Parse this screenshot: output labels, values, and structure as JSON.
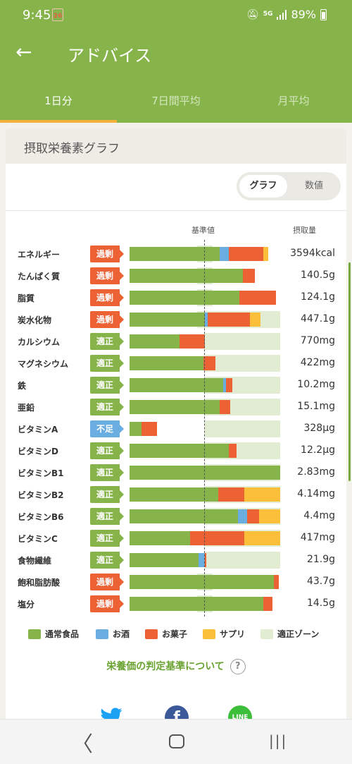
{
  "status": {
    "time": "9:45",
    "calendar_day": "26",
    "network": "5G",
    "battery": "89%"
  },
  "appbar": {
    "title": "アドバイス"
  },
  "tabs": [
    "1日分",
    "7日間平均",
    "月平均"
  ],
  "card": {
    "title": "摂取栄養素グラフ",
    "toggle": {
      "graph": "グラフ",
      "numeric": "数値"
    },
    "header_base": "基準値",
    "header_intake": "摂取量"
  },
  "colors": {
    "normal": "#86b44a",
    "alcohol": "#6aade0",
    "snack": "#ec6235",
    "supplement": "#fbbf3a",
    "zone": "#e2ecd3"
  },
  "nutrients": [
    {
      "name": "エネルギー",
      "status": "過剰",
      "kind": "over",
      "value": "3594kcal",
      "zone": [
        0.45,
        0.55
      ],
      "segments": [
        [
          "normal",
          0.6
        ],
        [
          "alcohol",
          0.06
        ],
        [
          "snack",
          0.23
        ],
        [
          "supplement",
          0.03
        ]
      ]
    },
    {
      "name": "たんぱく質",
      "status": "過剰",
      "kind": "over",
      "value": "140.5g",
      "zone": [
        0.45,
        0.55
      ],
      "segments": [
        [
          "normal",
          0.75
        ],
        [
          "snack",
          0.08
        ]
      ]
    },
    {
      "name": "脂質",
      "status": "過剰",
      "kind": "over",
      "value": "124.1g",
      "zone": [
        0.45,
        0.55
      ],
      "segments": [
        [
          "normal",
          0.73
        ],
        [
          "snack",
          0.24
        ]
      ]
    },
    {
      "name": "炭水化物",
      "status": "過剰",
      "kind": "over",
      "value": "447.1g",
      "zone": [
        0.45,
        1.0
      ],
      "segments": [
        [
          "normal",
          0.5
        ],
        [
          "alcohol",
          0.02
        ],
        [
          "snack",
          0.28
        ],
        [
          "supplement",
          0.07
        ]
      ]
    },
    {
      "name": "カルシウム",
      "status": "適正",
      "kind": "ok",
      "value": "770mg",
      "zone": [
        0.5,
        1.0
      ],
      "segments": [
        [
          "normal",
          0.33
        ],
        [
          "snack",
          0.17
        ]
      ]
    },
    {
      "name": "マグネシウム",
      "status": "適正",
      "kind": "ok",
      "value": "422mg",
      "zone": [
        0.5,
        1.0
      ],
      "segments": [
        [
          "normal",
          0.49
        ],
        [
          "snack",
          0.08
        ]
      ]
    },
    {
      "name": "鉄",
      "status": "適正",
      "kind": "ok",
      "value": "10.2mg",
      "zone": [
        0.5,
        1.0
      ],
      "segments": [
        [
          "normal",
          0.62
        ],
        [
          "alcohol",
          0.02
        ],
        [
          "snack",
          0.04
        ]
      ]
    },
    {
      "name": "亜鉛",
      "status": "適正",
      "kind": "ok",
      "value": "15.1mg",
      "zone": [
        0.5,
        1.0
      ],
      "segments": [
        [
          "normal",
          0.6
        ],
        [
          "snack",
          0.07
        ]
      ]
    },
    {
      "name": "ビタミンA",
      "status": "不足",
      "kind": "low",
      "value": "328μg",
      "zone": [
        0.5,
        1.0
      ],
      "segments": [
        [
          "normal",
          0.08
        ],
        [
          "snack",
          0.1
        ]
      ]
    },
    {
      "name": "ビタミンD",
      "status": "適正",
      "kind": "ok",
      "value": "12.2μg",
      "zone": [
        0.5,
        1.0
      ],
      "segments": [
        [
          "normal",
          0.66
        ],
        [
          "snack",
          0.05
        ]
      ]
    },
    {
      "name": "ビタミンB1",
      "status": "適正",
      "kind": "ok",
      "value": "2.83mg",
      "zone": [
        0.5,
        1.0
      ],
      "segments": [
        [
          "normal",
          1.0
        ]
      ]
    },
    {
      "name": "ビタミンB2",
      "status": "適正",
      "kind": "ok",
      "value": "4.14mg",
      "zone": [
        0.5,
        1.0
      ],
      "segments": [
        [
          "normal",
          0.59
        ],
        [
          "snack",
          0.17
        ],
        [
          "supplement",
          0.24
        ]
      ]
    },
    {
      "name": "ビタミンB6",
      "status": "適正",
      "kind": "ok",
      "value": "4.4mg",
      "zone": [
        0.5,
        1.0
      ],
      "segments": [
        [
          "normal",
          0.72
        ],
        [
          "alcohol",
          0.06
        ],
        [
          "snack",
          0.08
        ],
        [
          "supplement",
          0.14
        ]
      ]
    },
    {
      "name": "ビタミンC",
      "status": "適正",
      "kind": "ok",
      "value": "417mg",
      "zone": [
        0.5,
        1.0
      ],
      "segments": [
        [
          "normal",
          0.4
        ],
        [
          "snack",
          0.36
        ],
        [
          "supplement",
          0.24
        ]
      ]
    },
    {
      "name": "食物繊維",
      "status": "適正",
      "kind": "ok",
      "value": "21.9g",
      "zone": [
        0.5,
        1.0
      ],
      "segments": [
        [
          "normal",
          0.46
        ],
        [
          "alcohol",
          0.04
        ],
        [
          "snack",
          0.01
        ]
      ]
    },
    {
      "name": "飽和脂肪酸",
      "status": "過剰",
      "kind": "over",
      "value": "43.7g",
      "zone": [
        0.45,
        0.55
      ],
      "segments": [
        [
          "normal",
          0.96
        ],
        [
          "snack",
          0.03
        ]
      ]
    },
    {
      "name": "塩分",
      "status": "過剰",
      "kind": "over",
      "value": "14.5g",
      "zone": [
        0.45,
        0.55
      ],
      "segments": [
        [
          "normal",
          0.89
        ],
        [
          "snack",
          0.06
        ]
      ]
    }
  ],
  "legend": [
    {
      "key": "normal",
      "label": "通常食品"
    },
    {
      "key": "alcohol",
      "label": "お酒"
    },
    {
      "key": "snack",
      "label": "お菓子"
    },
    {
      "key": "supplement",
      "label": "サプリ"
    },
    {
      "key": "zone",
      "label": "適正ゾーン"
    }
  ],
  "link_text": "栄養価の判定基準について",
  "help_label": "?",
  "social": {
    "facebook_glyph": "f",
    "line_label": "LINE"
  },
  "nav": {
    "back": "〈",
    "recent": "|||"
  }
}
